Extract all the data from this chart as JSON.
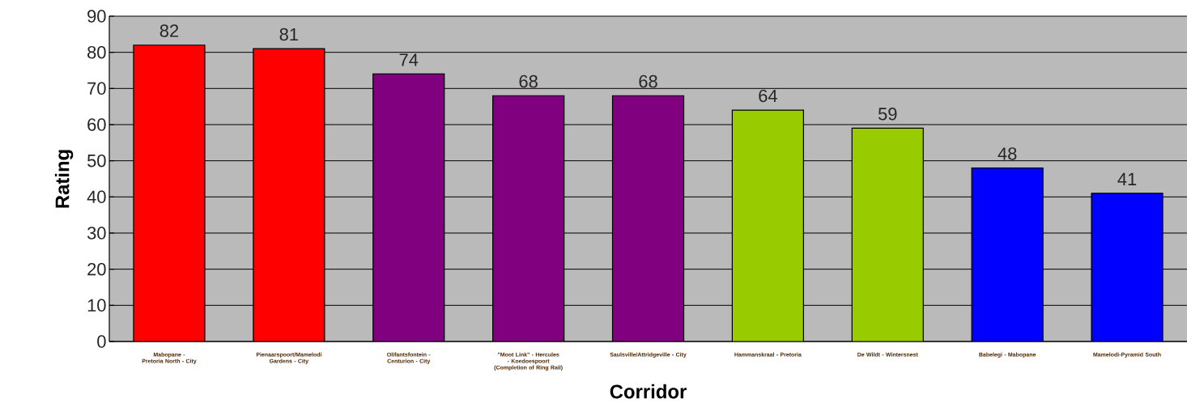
{
  "chart_data": {
    "type": "bar",
    "xlabel": "Corridor",
    "ylabel": "Rating",
    "categories": [
      "Mabopane - Pretoria North - City",
      "Pienaarspoort/Mamelodi Gardens - City",
      "Olifantsfontein - Centurion - City",
      "\"Moot Link\" - Hercules - Koedoespoort (Completion of Ring Rail)",
      "Saulsville/Attridgeville - City",
      "Hammanskraal - Pretoria",
      "De Wildt - Wintersnest",
      "Babelegi - Mabopane",
      "Mamelodi-Pyramid South"
    ],
    "values": [
      82,
      81,
      74,
      68,
      68,
      64,
      59,
      48,
      41
    ],
    "colors": [
      "#ff0000",
      "#ff0000",
      "#800080",
      "#800080",
      "#800080",
      "#99cc00",
      "#99cc00",
      "#0000ff",
      "#0000ff"
    ],
    "ylim": [
      0,
      90
    ],
    "yticks": [
      0,
      10,
      20,
      30,
      40,
      50,
      60,
      70,
      80,
      90
    ],
    "grid": "y",
    "data_labels": true
  }
}
